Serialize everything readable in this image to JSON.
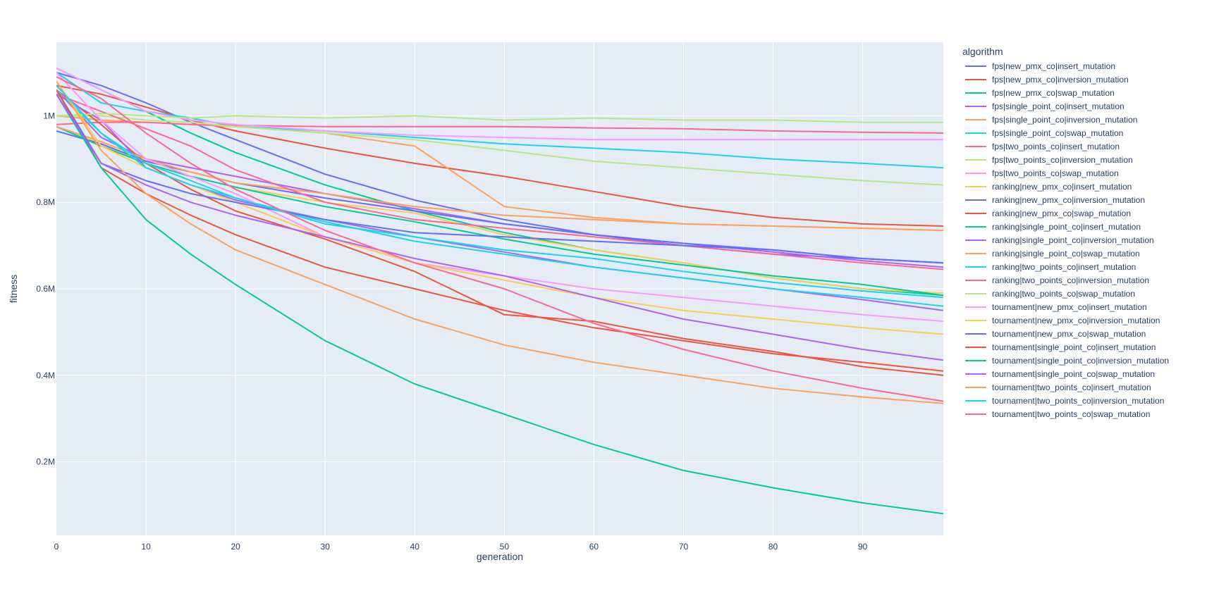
{
  "chart_data": {
    "type": "line",
    "title": "",
    "xlabel": "generation",
    "ylabel": "fitness",
    "xlim": [
      0,
      99
    ],
    "ylim": [
      30000,
      1170000
    ],
    "xticks": [
      0,
      10,
      20,
      30,
      40,
      50,
      60,
      70,
      80,
      90
    ],
    "xtick_labels": [
      "0",
      "10",
      "20",
      "30",
      "40",
      "50",
      "60",
      "70",
      "80",
      "90"
    ],
    "yticks": [
      200000,
      400000,
      600000,
      800000,
      1000000
    ],
    "ytick_labels": [
      "0.2M",
      "0.4M",
      "0.6M",
      "0.8M",
      "1M"
    ],
    "grid": true,
    "legend_title": "algorithm",
    "legend_position": "right",
    "x_points": [
      0,
      5,
      10,
      15,
      20,
      30,
      40,
      50,
      60,
      70,
      80,
      90,
      99
    ],
    "series": [
      {
        "name": "fps|new_pmx_co|insert_mutation",
        "color": "#636efa",
        "values": [
          1100000,
          1070000,
          1030000,
          985000,
          945000,
          865000,
          805000,
          760000,
          725000,
          700000,
          680000,
          670000,
          660000
        ]
      },
      {
        "name": "fps|new_pmx_co|inversion_mutation",
        "color": "#EF553B",
        "values": [
          1070000,
          1050000,
          1020000,
          990000,
          965000,
          925000,
          890000,
          860000,
          825000,
          790000,
          765000,
          750000,
          745000
        ]
      },
      {
        "name": "fps|new_pmx_co|swap_mutation",
        "color": "#00cc96",
        "values": [
          1110000,
          1060000,
          1010000,
          960000,
          915000,
          840000,
          780000,
          730000,
          690000,
          660000,
          625000,
          600000,
          585000
        ]
      },
      {
        "name": "fps|single_point_co|insert_mutation",
        "color": "#ab63fa",
        "values": [
          1060000,
          950000,
          900000,
          880000,
          860000,
          820000,
          785000,
          750000,
          725000,
          705000,
          685000,
          665000,
          650000
        ]
      },
      {
        "name": "fps|single_point_co|inversion_mutation",
        "color": "#FFA15A",
        "values": [
          1000000,
          990000,
          985000,
          980000,
          975000,
          960000,
          930000,
          790000,
          765000,
          750000,
          745000,
          740000,
          735000
        ]
      },
      {
        "name": "fps|single_point_co|swap_mutation",
        "color": "#19d3f3",
        "values": [
          1100000,
          1030000,
          1010000,
          995000,
          975000,
          965000,
          950000,
          935000,
          925000,
          915000,
          900000,
          890000,
          880000
        ]
      },
      {
        "name": "fps|two_points_co|insert_mutation",
        "color": "#FF6692",
        "values": [
          980000,
          985000,
          985000,
          980000,
          978000,
          975000,
          975000,
          975000,
          972000,
          970000,
          965000,
          962000,
          960000
        ]
      },
      {
        "name": "fps|two_points_co|inversion_mutation",
        "color": "#B6E880",
        "values": [
          1000000,
          1000000,
          990000,
          985000,
          975000,
          960000,
          945000,
          920000,
          895000,
          880000,
          865000,
          850000,
          840000
        ]
      },
      {
        "name": "fps|two_points_co|swap_mutation",
        "color": "#FF97FF",
        "values": [
          1110000,
          1060000,
          1010000,
          990000,
          980000,
          965000,
          955000,
          950000,
          945000,
          945000,
          945000,
          945000,
          945000
        ]
      },
      {
        "name": "ranking|new_pmx_co|insert_mutation",
        "color": "#FECB52",
        "values": [
          975000,
          935000,
          890000,
          860000,
          835000,
          800000,
          775000,
          725000,
          690000,
          660000,
          625000,
          600000,
          590000
        ]
      },
      {
        "name": "ranking|new_pmx_co|inversion_mutation",
        "color": "#636efa",
        "values": [
          965000,
          935000,
          895000,
          870000,
          845000,
          810000,
          780000,
          750000,
          725000,
          705000,
          690000,
          670000,
          660000
        ]
      },
      {
        "name": "ranking|new_pmx_co|swap_mutation",
        "color": "#EF553B",
        "values": [
          1060000,
          980000,
          890000,
          830000,
          780000,
          715000,
          640000,
          540000,
          525000,
          485000,
          455000,
          420000,
          400000
        ]
      },
      {
        "name": "ranking|single_point_co|insert_mutation",
        "color": "#00cc96",
        "values": [
          975000,
          930000,
          890000,
          860000,
          835000,
          790000,
          755000,
          715000,
          680000,
          655000,
          630000,
          610000,
          585000
        ]
      },
      {
        "name": "ranking|single_point_co|inversion_mutation",
        "color": "#ab63fa",
        "values": [
          1050000,
          990000,
          880000,
          840000,
          805000,
          760000,
          720000,
          685000,
          650000,
          625000,
          600000,
          575000,
          550000
        ]
      },
      {
        "name": "ranking|single_point_co|swap_mutation",
        "color": "#FFA15A",
        "values": [
          975000,
          940000,
          900000,
          870000,
          845000,
          820000,
          790000,
          770000,
          760000,
          750000,
          745000,
          740000,
          735000
        ]
      },
      {
        "name": "ranking|two_points_co|insert_mutation",
        "color": "#19d3f3",
        "values": [
          1060000,
          960000,
          890000,
          850000,
          810000,
          755000,
          710000,
          680000,
          650000,
          625000,
          600000,
          580000,
          560000
        ]
      },
      {
        "name": "ranking|two_points_co|inversion_mutation",
        "color": "#FF6692",
        "values": [
          1050000,
          1010000,
          970000,
          930000,
          875000,
          800000,
          760000,
          740000,
          720000,
          700000,
          680000,
          660000,
          645000
        ]
      },
      {
        "name": "ranking|two_points_co|swap_mutation",
        "color": "#B6E880",
        "values": [
          1000000,
          1005000,
          1000000,
          995000,
          1000000,
          995000,
          1000000,
          990000,
          995000,
          990000,
          990000,
          985000,
          985000
        ]
      },
      {
        "name": "tournament|new_pmx_co|insert_mutation",
        "color": "#FF97FF",
        "values": [
          1100000,
          990000,
          900000,
          860000,
          820000,
          720000,
          660000,
          630000,
          600000,
          580000,
          560000,
          540000,
          525000
        ]
      },
      {
        "name": "tournament|new_pmx_co|inversion_mutation",
        "color": "#FECB52",
        "values": [
          1080000,
          930000,
          880000,
          840000,
          800000,
          720000,
          660000,
          620000,
          580000,
          550000,
          530000,
          510000,
          495000
        ]
      },
      {
        "name": "tournament|new_pmx_co|swap_mutation",
        "color": "#636efa",
        "values": [
          1060000,
          890000,
          850000,
          820000,
          800000,
          760000,
          730000,
          720000,
          710000,
          700000,
          690000,
          670000,
          660000
        ]
      },
      {
        "name": "tournament|single_point_co|insert_mutation",
        "color": "#EF553B",
        "values": [
          1060000,
          880000,
          820000,
          770000,
          725000,
          650000,
          600000,
          550000,
          510000,
          480000,
          450000,
          430000,
          410000
        ]
      },
      {
        "name": "tournament|single_point_co|inversion_mutation",
        "color": "#00cc96",
        "values": [
          1050000,
          880000,
          760000,
          680000,
          610000,
          480000,
          380000,
          310000,
          240000,
          180000,
          140000,
          105000,
          80000
        ]
      },
      {
        "name": "tournament|single_point_co|swap_mutation",
        "color": "#ab63fa",
        "values": [
          1050000,
          890000,
          840000,
          800000,
          770000,
          720000,
          670000,
          630000,
          580000,
          530000,
          495000,
          460000,
          435000
        ]
      },
      {
        "name": "tournament|two_points_co|insert_mutation",
        "color": "#FFA15A",
        "values": [
          1080000,
          920000,
          820000,
          750000,
          690000,
          610000,
          530000,
          470000,
          430000,
          400000,
          370000,
          350000,
          335000
        ]
      },
      {
        "name": "tournament|two_points_co|inversion_mutation",
        "color": "#19d3f3",
        "values": [
          1070000,
          960000,
          880000,
          840000,
          810000,
          750000,
          720000,
          690000,
          670000,
          640000,
          615000,
          595000,
          580000
        ]
      },
      {
        "name": "tournament|two_points_co|swap_mutation",
        "color": "#FF6692",
        "values": [
          1090000,
          1040000,
          960000,
          890000,
          830000,
          735000,
          660000,
          600000,
          520000,
          460000,
          410000,
          370000,
          340000
        ]
      }
    ]
  }
}
